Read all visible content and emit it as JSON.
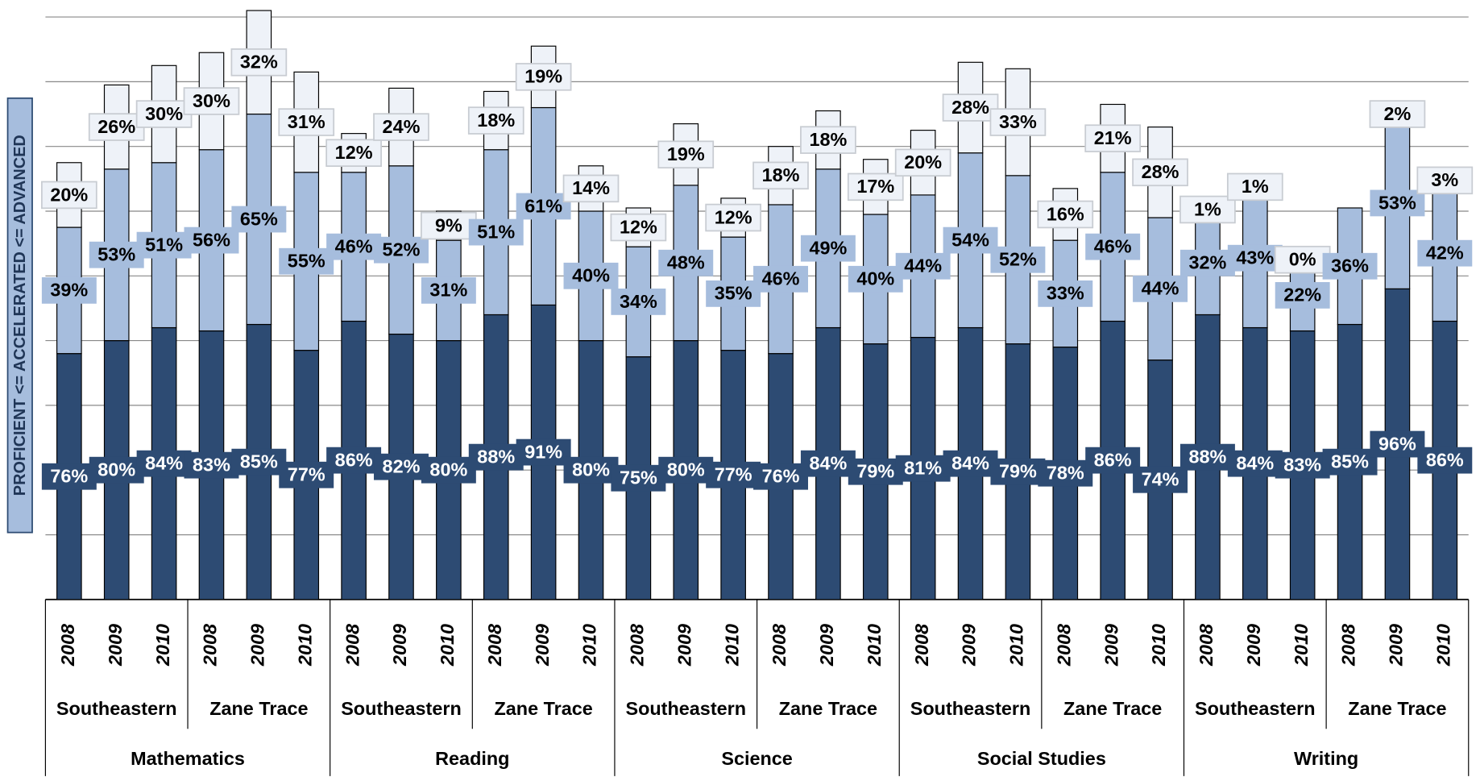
{
  "chart_data": {
    "type": "stacked_bar",
    "y_axis_label": "PROFICIENT <= ACCELERATED <= ADVANCED",
    "categories": [
      "2008",
      "2009",
      "2010",
      "2008",
      "2009",
      "2010",
      "2008",
      "2009",
      "2010",
      "2008",
      "2009",
      "2010",
      "2008",
      "2009",
      "2010",
      "2008",
      "2009",
      "2010",
      "2008",
      "2009",
      "2010",
      "2008",
      "2009",
      "2010",
      "2008",
      "2009",
      "2010",
      "2008",
      "2009",
      "2010"
    ],
    "school_groups": [
      "Southeastern",
      "Zane Trace",
      "Southeastern",
      "Zane Trace",
      "Southeastern",
      "Zane Trace",
      "Southeastern",
      "Zane Trace",
      "Southeastern",
      "Zane Trace"
    ],
    "subject_groups": [
      "Mathematics",
      "Reading",
      "Science",
      "Social Studies",
      "Writing"
    ],
    "ylim": [
      0,
      180
    ],
    "yticks": [
      0,
      20,
      40,
      60,
      80,
      100,
      120,
      140,
      160,
      180
    ],
    "grid": true,
    "series": [
      {
        "color": "#2d4b73",
        "label_color": "#ffffff",
        "values": [
          76,
          80,
          84,
          83,
          85,
          77,
          86,
          82,
          80,
          88,
          91,
          80,
          75,
          80,
          77,
          76,
          84,
          79,
          81,
          84,
          79,
          78,
          86,
          74,
          88,
          84,
          83,
          85,
          96,
          86
        ],
        "value_labels": [
          "76%",
          "80%",
          "84%",
          "83%",
          "85%",
          "77%",
          "86%",
          "82%",
          "80%",
          "88%",
          "91%",
          "80%",
          "75%",
          "80%",
          "77%",
          "76%",
          "84%",
          "79%",
          "81%",
          "84%",
          "79%",
          "78%",
          "86%",
          "74%",
          "88%",
          "84%",
          "83%",
          "85%",
          "96%",
          "86%"
        ]
      },
      {
        "color": "#a6bddd",
        "label_color": "#000000",
        "values": [
          39,
          53,
          51,
          56,
          65,
          55,
          46,
          52,
          31,
          51,
          61,
          40,
          34,
          48,
          35,
          46,
          49,
          40,
          44,
          54,
          52,
          33,
          46,
          44,
          32,
          43,
          22,
          36,
          53,
          42
        ],
        "value_labels": [
          "39%",
          "53%",
          "51%",
          "56%",
          "65%",
          "55%",
          "46%",
          "52%",
          "31%",
          "51%",
          "61%",
          "40%",
          "34%",
          "48%",
          "35%",
          "46%",
          "49%",
          "40%",
          "44%",
          "54%",
          "52%",
          "33%",
          "46%",
          "44%",
          "32%",
          "43%",
          "22%",
          "36%",
          "53%",
          "42%"
        ]
      },
      {
        "color": "#eef2f8",
        "label_color": "#000000",
        "values": [
          20,
          26,
          30,
          30,
          32,
          31,
          12,
          24,
          9,
          18,
          19,
          14,
          12,
          19,
          12,
          18,
          18,
          17,
          20,
          28,
          33,
          16,
          21,
          28,
          1,
          1,
          0,
          null,
          2,
          3
        ],
        "value_labels": [
          "20%",
          "26%",
          "30%",
          "30%",
          "32%",
          "31%",
          "12%",
          "24%",
          "9%",
          "18%",
          "19%",
          "14%",
          "12%",
          "19%",
          "12%",
          "18%",
          "18%",
          "17%",
          "20%",
          "28%",
          "33%",
          "16%",
          "21%",
          "28%",
          "1%",
          "1%",
          "0%",
          null,
          "2%",
          "3%"
        ]
      }
    ]
  }
}
